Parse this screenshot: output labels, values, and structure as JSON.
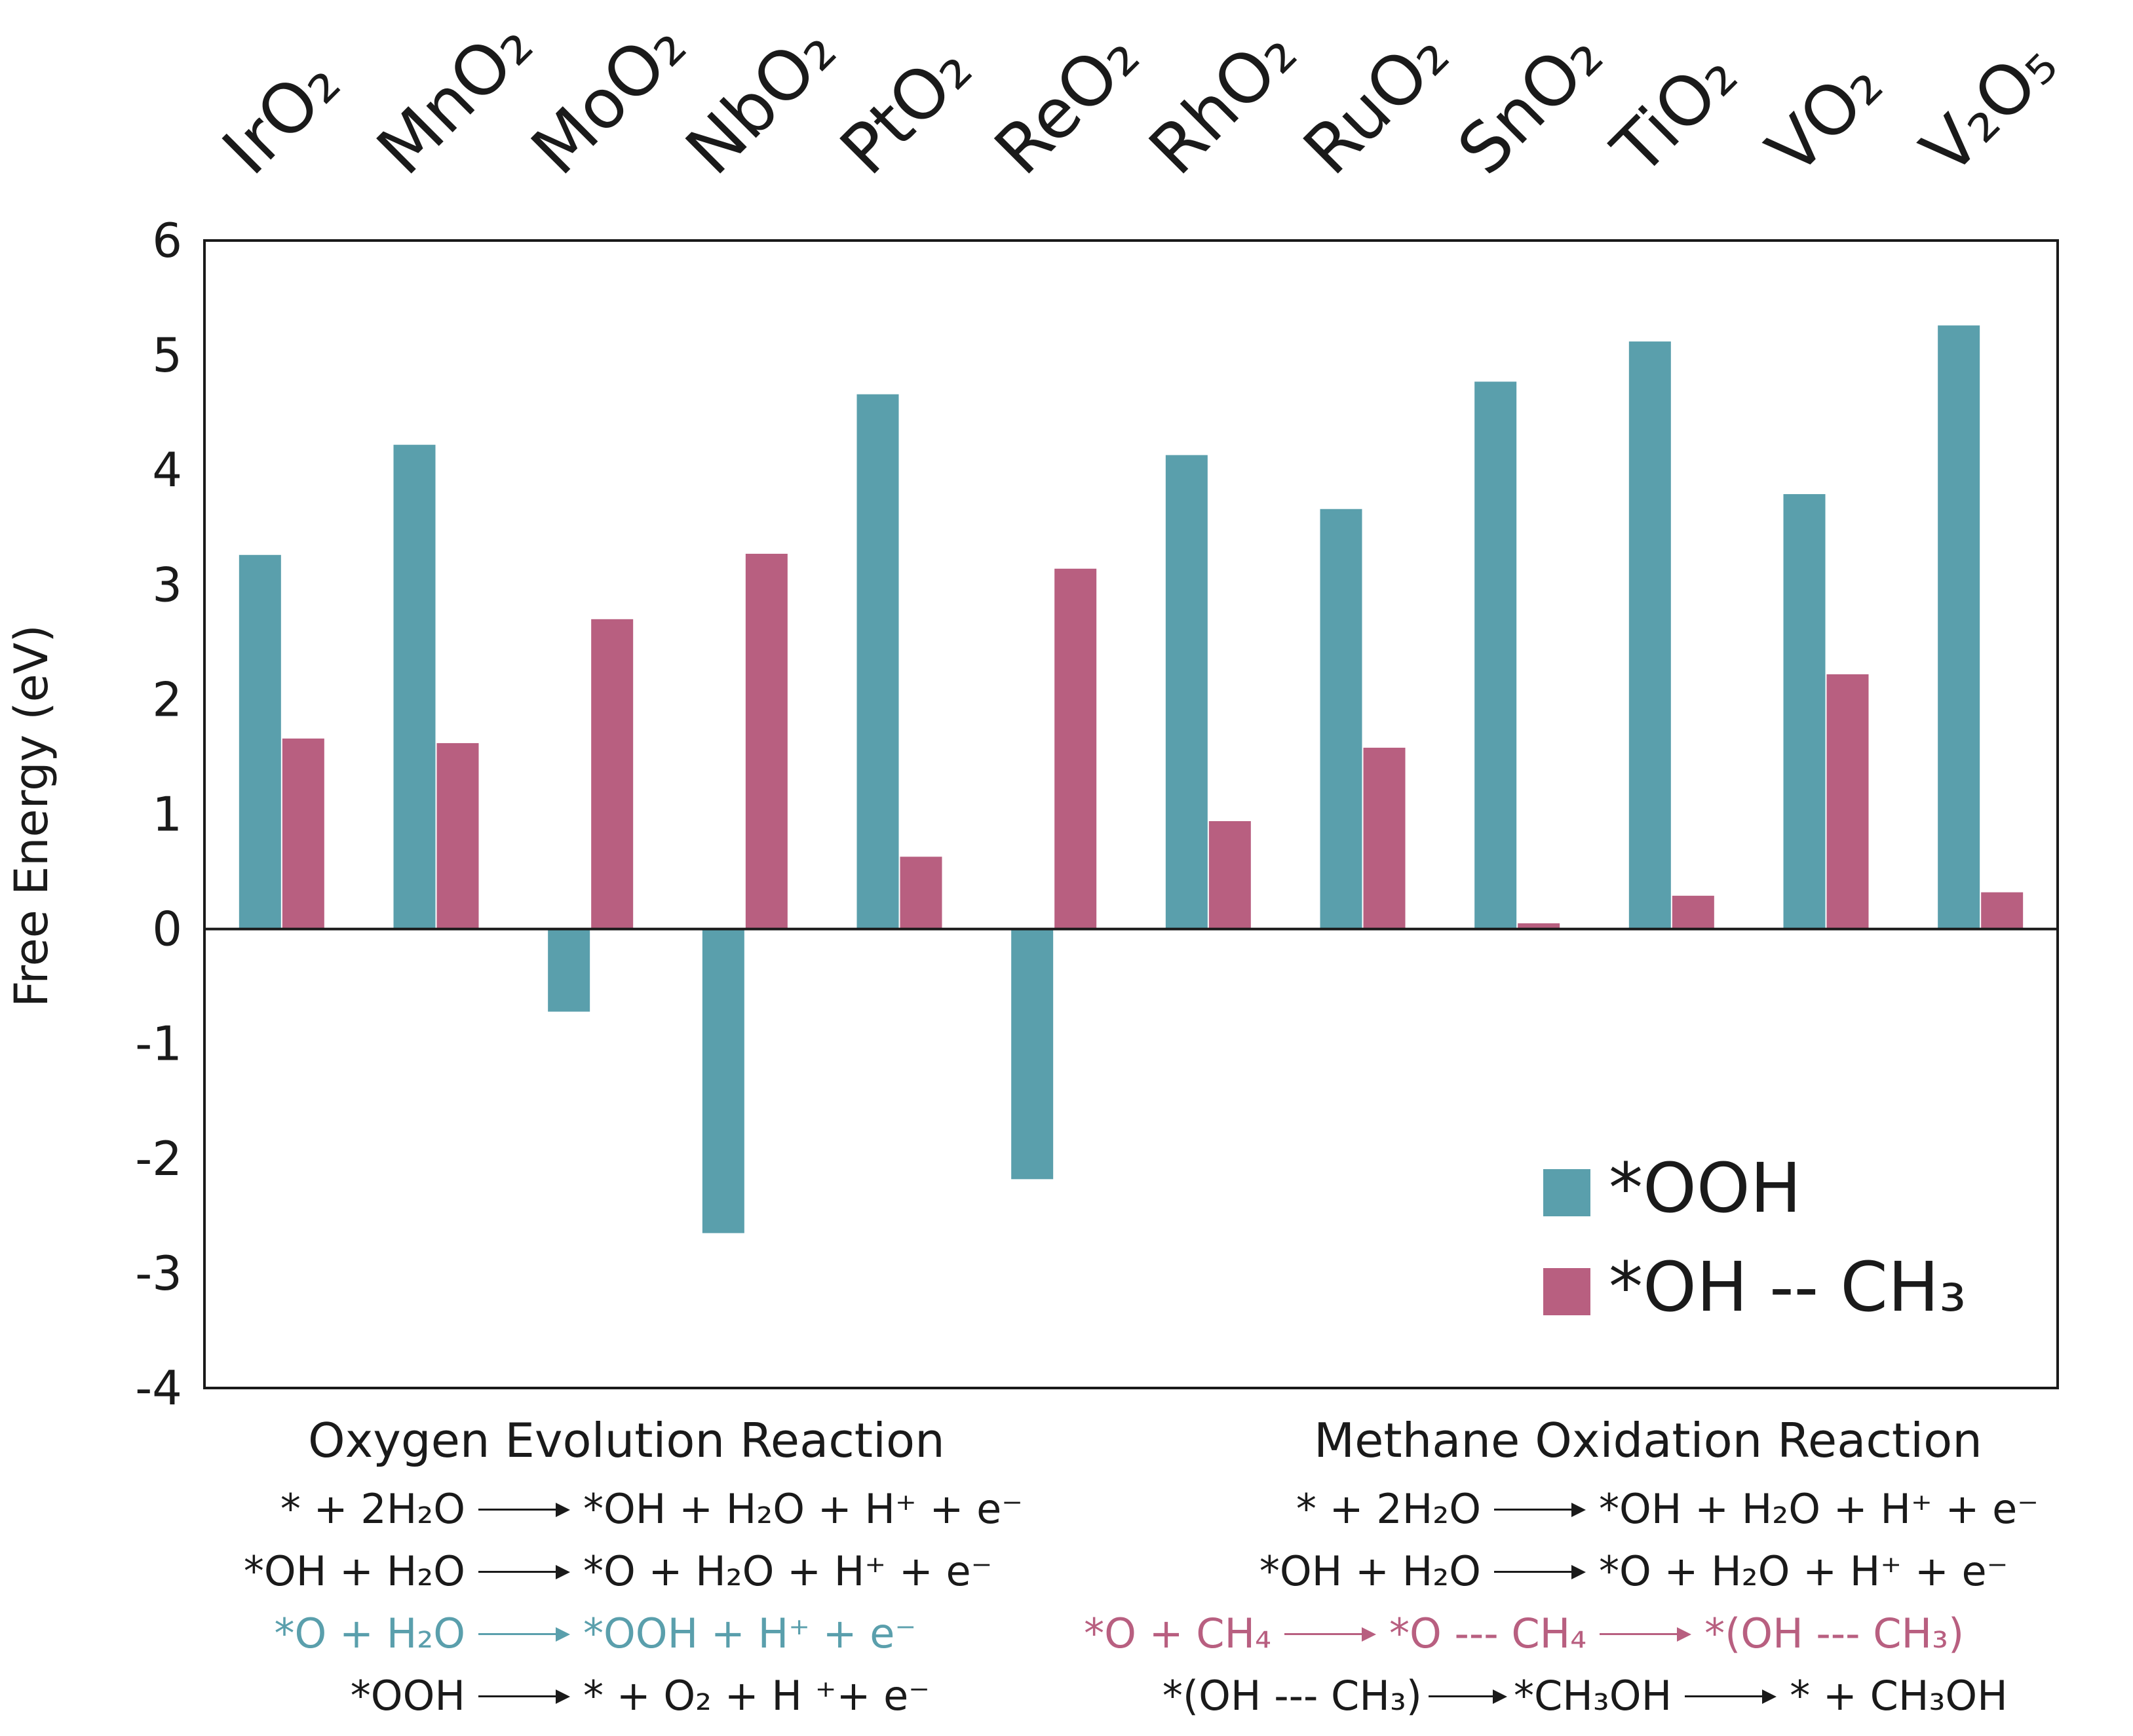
{
  "chart_data": {
    "type": "bar",
    "ylabel": "Free Energy (eV)",
    "ylim": [
      -4,
      6
    ],
    "yticks": [
      6,
      5,
      4,
      3,
      2,
      1,
      0,
      -1,
      -2,
      -3,
      -4
    ],
    "categories": [
      "IrO2",
      "MnO2",
      "MoO2",
      "NbO2",
      "PtO2",
      "ReO2",
      "RhO2",
      "RuO2",
      "SnO2",
      "TiO2",
      "VO2",
      "V2O5"
    ],
    "category_labels": [
      "IrO₂",
      "MnO₂",
      "MoO₂",
      "NbO₂",
      "PtO₂",
      "ReO₂",
      "RhO₂",
      "RuO₂",
      "SnO₂",
      "TiO₂",
      "VO₂",
      "V₂O₅"
    ],
    "series": [
      {
        "name": "*OOH",
        "color": "#5a9fac",
        "values": [
          3.26,
          4.22,
          -0.72,
          -2.65,
          4.66,
          -2.18,
          4.13,
          3.66,
          4.77,
          5.12,
          3.79,
          5.26
        ]
      },
      {
        "name": "*OH -- CH₃",
        "color": "#b85f80",
        "values": [
          1.66,
          1.62,
          2.7,
          3.27,
          0.63,
          3.14,
          0.94,
          1.58,
          0.05,
          0.29,
          2.22,
          0.32
        ]
      }
    ],
    "legend": {
      "position": "lower-right",
      "items": [
        "*OOH",
        "*OH -- CH₃"
      ]
    }
  },
  "reactions": {
    "oer": {
      "title": "Oxygen Evolution Reaction",
      "steps": [
        {
          "lhs": "* + 2H₂O",
          "rhs": "*OH + H₂O + H⁺ + e⁻",
          "highlight": false
        },
        {
          "lhs": "*OH + H₂O",
          "rhs": "*O + H₂O + H⁺ + e⁻",
          "highlight": false
        },
        {
          "lhs": "*O + H₂O",
          "rhs": "*OOH  + H⁺ + e⁻",
          "highlight": true
        },
        {
          "lhs": "*OOH",
          "rhs": "* + O₂  + H ⁺+ e⁻",
          "highlight": false
        }
      ],
      "highlight_color": "#5a9fac"
    },
    "mor": {
      "title": "Methane Oxidation Reaction",
      "steps": [
        {
          "parts": [
            "* + 2H₂O",
            "*OH + H₂O + H⁺ + e⁻"
          ],
          "highlight": false
        },
        {
          "parts": [
            "*OH + H₂O",
            "*O + H₂O + H⁺ + e⁻"
          ],
          "highlight": false
        },
        {
          "parts": [
            "*O + CH₄",
            "*O --- CH₄",
            "*(OH --- CH₃)"
          ],
          "highlight": true
        },
        {
          "parts": [
            "*(OH --- CH₃)",
            "*CH₃OH",
            "* + CH₃OH"
          ],
          "highlight": false
        }
      ],
      "highlight_color": "#b85f80"
    }
  }
}
